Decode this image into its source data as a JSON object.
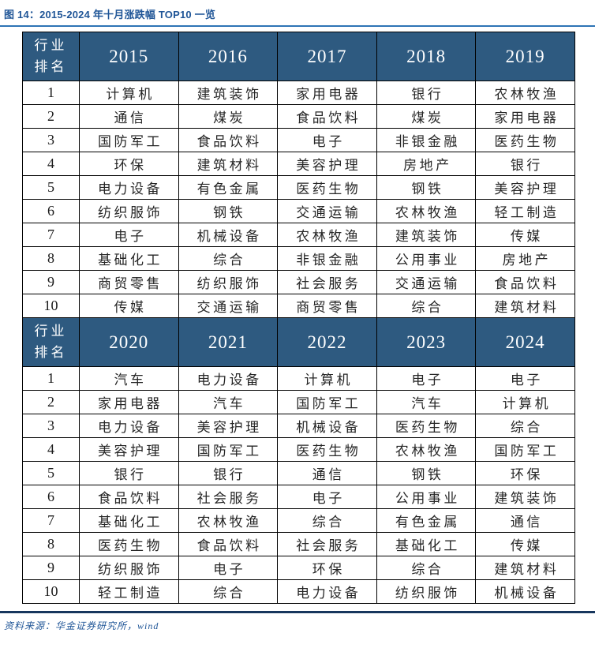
{
  "title": "图 14：2015-2024 年十月涨跌幅 TOP10 一览",
  "source": "资料来源：华金证券研究所，wind",
  "colors": {
    "header_bg": "#2E5A80",
    "title_blue": "#1F5597",
    "title_rule_blue": "#2E74B5",
    "bottom_rule_blue": "#17365D",
    "cell_text": "#262626"
  },
  "table": {
    "rank_header": "行业排名",
    "sections": [
      {
        "years": [
          "2015",
          "2016",
          "2017",
          "2018",
          "2019"
        ],
        "rows": [
          {
            "rank": "1",
            "cells": [
              "计算机",
              "建筑装饰",
              "家用电器",
              "银行",
              "农林牧渔"
            ]
          },
          {
            "rank": "2",
            "cells": [
              "通信",
              "煤炭",
              "食品饮料",
              "煤炭",
              "家用电器"
            ]
          },
          {
            "rank": "3",
            "cells": [
              "国防军工",
              "食品饮料",
              "电子",
              "非银金融",
              "医药生物"
            ]
          },
          {
            "rank": "4",
            "cells": [
              "环保",
              "建筑材料",
              "美容护理",
              "房地产",
              "银行"
            ]
          },
          {
            "rank": "5",
            "cells": [
              "电力设备",
              "有色金属",
              "医药生物",
              "钢铁",
              "美容护理"
            ]
          },
          {
            "rank": "6",
            "cells": [
              "纺织服饰",
              "钢铁",
              "交通运输",
              "农林牧渔",
              "轻工制造"
            ]
          },
          {
            "rank": "7",
            "cells": [
              "电子",
              "机械设备",
              "农林牧渔",
              "建筑装饰",
              "传媒"
            ]
          },
          {
            "rank": "8",
            "cells": [
              "基础化工",
              "综合",
              "非银金融",
              "公用事业",
              "房地产"
            ]
          },
          {
            "rank": "9",
            "cells": [
              "商贸零售",
              "纺织服饰",
              "社会服务",
              "交通运输",
              "食品饮料"
            ]
          },
          {
            "rank": "10",
            "cells": [
              "传媒",
              "交通运输",
              "商贸零售",
              "综合",
              "建筑材料"
            ]
          }
        ]
      },
      {
        "years": [
          "2020",
          "2021",
          "2022",
          "2023",
          "2024"
        ],
        "rows": [
          {
            "rank": "1",
            "cells": [
              "汽车",
              "电力设备",
              "计算机",
              "电子",
              "电子"
            ]
          },
          {
            "rank": "2",
            "cells": [
              "家用电器",
              "汽车",
              "国防军工",
              "汽车",
              "计算机"
            ]
          },
          {
            "rank": "3",
            "cells": [
              "电力设备",
              "美容护理",
              "机械设备",
              "医药生物",
              "综合"
            ]
          },
          {
            "rank": "4",
            "cells": [
              "美容护理",
              "国防军工",
              "医药生物",
              "农林牧渔",
              "国防军工"
            ]
          },
          {
            "rank": "5",
            "cells": [
              "银行",
              "银行",
              "通信",
              "钢铁",
              "环保"
            ]
          },
          {
            "rank": "6",
            "cells": [
              "食品饮料",
              "社会服务",
              "电子",
              "公用事业",
              "建筑装饰"
            ]
          },
          {
            "rank": "7",
            "cells": [
              "基础化工",
              "农林牧渔",
              "综合",
              "有色金属",
              "通信"
            ]
          },
          {
            "rank": "8",
            "cells": [
              "医药生物",
              "食品饮料",
              "社会服务",
              "基础化工",
              "传媒"
            ]
          },
          {
            "rank": "9",
            "cells": [
              "纺织服饰",
              "电子",
              "环保",
              "综合",
              "建筑材料"
            ]
          },
          {
            "rank": "10",
            "cells": [
              "轻工制造",
              "综合",
              "电力设备",
              "纺织服饰",
              "机械设备"
            ]
          }
        ]
      }
    ]
  }
}
